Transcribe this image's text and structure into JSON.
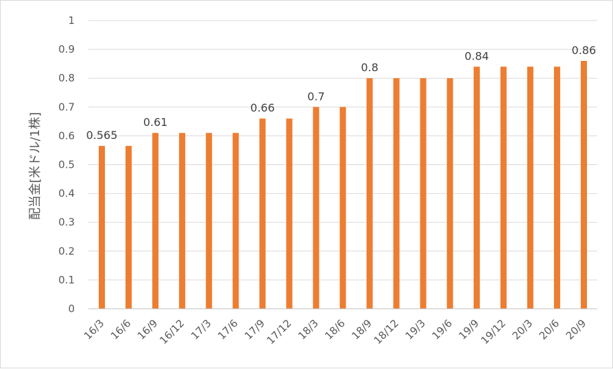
{
  "chart_data": {
    "type": "bar",
    "ylabel": "配当金[米ドル/1株]",
    "xlabel": "",
    "title": "",
    "ylim": [
      0,
      1
    ],
    "yticks": [
      "0",
      "0.1",
      "0.2",
      "0.3",
      "0.4",
      "0.5",
      "0.6",
      "0.7",
      "0.8",
      "0.9",
      "1"
    ],
    "grid": true,
    "legend": "none",
    "bar_color": "#ED7D31",
    "categories": [
      "16/3",
      "16/6",
      "16/9",
      "16/12",
      "17/3",
      "17/6",
      "17/9",
      "17/12",
      "18/3",
      "18/6",
      "18/9",
      "18/12",
      "19/3",
      "19/6",
      "19/9",
      "19/12",
      "20/3",
      "20/6",
      "20/9"
    ],
    "values": [
      0.565,
      0.565,
      0.61,
      0.61,
      0.61,
      0.61,
      0.66,
      0.66,
      0.7,
      0.7,
      0.8,
      0.8,
      0.8,
      0.8,
      0.84,
      0.84,
      0.84,
      0.84,
      0.86
    ],
    "data_labels": [
      "0.565",
      "",
      "0.61",
      "",
      "",
      "",
      "0.66",
      "",
      "0.7",
      "",
      "0.8",
      "",
      "",
      "",
      "0.84",
      "",
      "",
      "",
      "0.86"
    ]
  }
}
